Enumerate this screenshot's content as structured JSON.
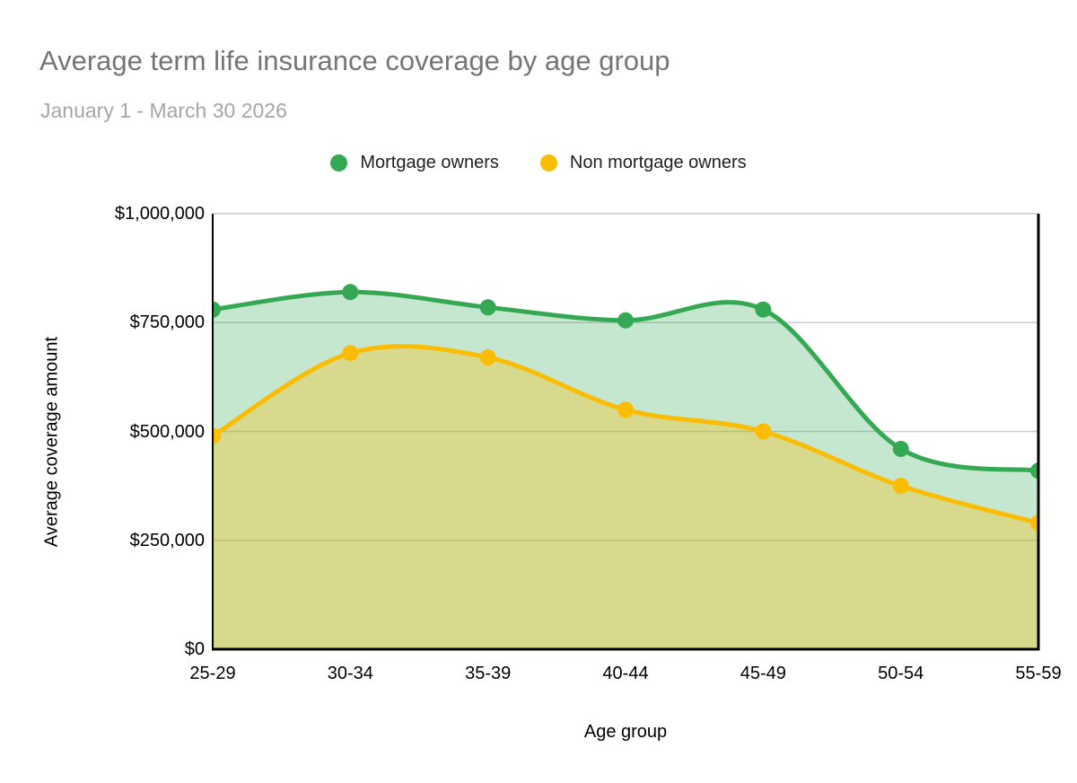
{
  "chart_data": {
    "type": "area",
    "title": "Average term life insurance coverage by age group",
    "subtitle": "January 1 - March 30 2026",
    "xlabel": "Age group",
    "ylabel": "Average coverage amount",
    "categories": [
      "25-29",
      "30-34",
      "35-39",
      "40-44",
      "45-49",
      "50-54",
      "55-59"
    ],
    "series": [
      {
        "name": "Mortgage owners",
        "color": "#34a853",
        "fill_opacity": 0.28,
        "values": [
          780000,
          820000,
          785000,
          755000,
          780000,
          460000,
          410000
        ]
      },
      {
        "name": "Non mortgage owners",
        "color": "#fbbc04",
        "fill_opacity": 0.32,
        "values": [
          490000,
          680000,
          670000,
          550000,
          500000,
          375000,
          290000
        ]
      }
    ],
    "ylim": [
      0,
      1000000
    ],
    "y_ticks": [
      {
        "value": 0,
        "label": "$0"
      },
      {
        "value": 250000,
        "label": "$250,000"
      },
      {
        "value": 500000,
        "label": "$500,000"
      },
      {
        "value": 750000,
        "label": "$750,000"
      },
      {
        "value": 1000000,
        "label": "$1,000,000"
      }
    ],
    "grid": true,
    "curve": "smooth",
    "legend_position": "top-center",
    "grid_color": "#cccccc",
    "axis_color": "#000000"
  }
}
